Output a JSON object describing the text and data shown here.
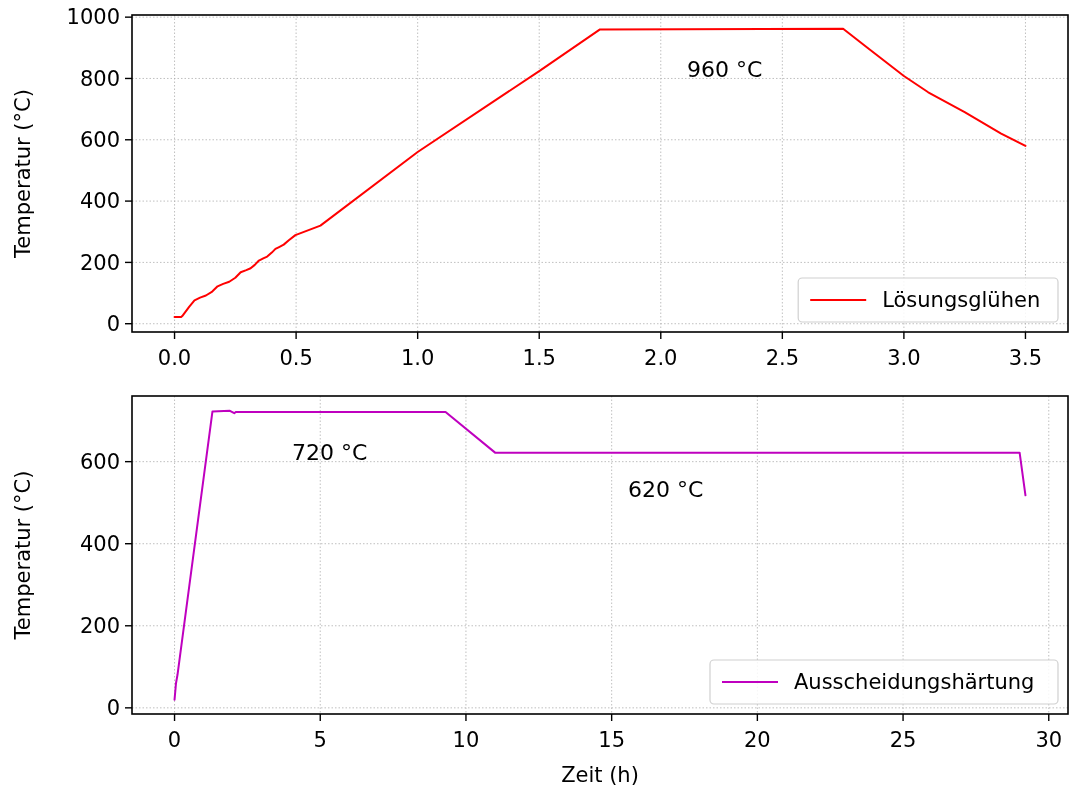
{
  "chart_data": [
    {
      "type": "line",
      "ylabel": "Temperatur (°C)",
      "xlim": [
        -0.175,
        3.675
      ],
      "xticks": [
        {
          "value": 0,
          "label": "0.0"
        },
        {
          "value": 0.5,
          "label": "0.5"
        },
        {
          "value": 1,
          "label": "1.0"
        },
        {
          "value": 1.5,
          "label": "1.5"
        },
        {
          "value": 2,
          "label": "2.0"
        },
        {
          "value": 2.5,
          "label": "2.5"
        },
        {
          "value": 3,
          "label": "3.0"
        },
        {
          "value": 3.5,
          "label": "3.5"
        }
      ],
      "ylim": [
        -27,
        1007
      ],
      "yticks": [
        0,
        200,
        400,
        600,
        800,
        1000
      ],
      "grid": true,
      "legend": "bottom right",
      "line_style": "solid",
      "series": [
        {
          "name": "Lösungsglühen",
          "color": "#ff0000",
          "x": [
            0,
            0.027,
            0.034,
            0.06,
            0.082,
            0.105,
            0.129,
            0.155,
            0.177,
            0.2,
            0.225,
            0.25,
            0.272,
            0.295,
            0.313,
            0.33,
            0.347,
            0.365,
            0.381,
            0.4,
            0.415,
            0.43,
            0.449,
            0.47,
            0.497,
            0.6,
            1.0,
            1.5,
            1.75,
            2.75,
            2.85,
            3.0,
            3.1,
            3.25,
            3.4,
            3.5
          ],
          "values": [
            22,
            22,
            27,
            55,
            76,
            85,
            92,
            105,
            122,
            130,
            137,
            150,
            168,
            175,
            181,
            192,
            206,
            213,
            219,
            232,
            244,
            250,
            258,
            272,
            289,
            320,
            560,
            824,
            960,
            962,
            900,
            808,
            755,
            690,
            620,
            580
          ]
        }
      ],
      "annotations": [
        "960 °C"
      ]
    },
    {
      "type": "line",
      "xlabel": "Zeit (h)",
      "ylabel": "Temperatur (°C)",
      "xlim": [
        -1.46,
        30.66
      ],
      "xticks": [
        0,
        5,
        10,
        15,
        20,
        25,
        30
      ],
      "ylim": [
        -15,
        760
      ],
      "yticks": [
        0,
        200,
        400,
        600
      ],
      "grid": true,
      "legend": "bottom right",
      "line_style": "solid",
      "series": [
        {
          "name": "Ausscheidungshärtung",
          "color": "#bf00bf",
          "x": [
            0,
            0.05,
            0.1,
            1.3,
            1.9,
            2.05,
            2.1,
            9.3,
            11,
            29,
            29.2
          ],
          "values": [
            20,
            60,
            80,
            722,
            724,
            718,
            721,
            721,
            622,
            622,
            518
          ]
        }
      ],
      "annotations": [
        "720 °C",
        "620 °C"
      ]
    }
  ]
}
